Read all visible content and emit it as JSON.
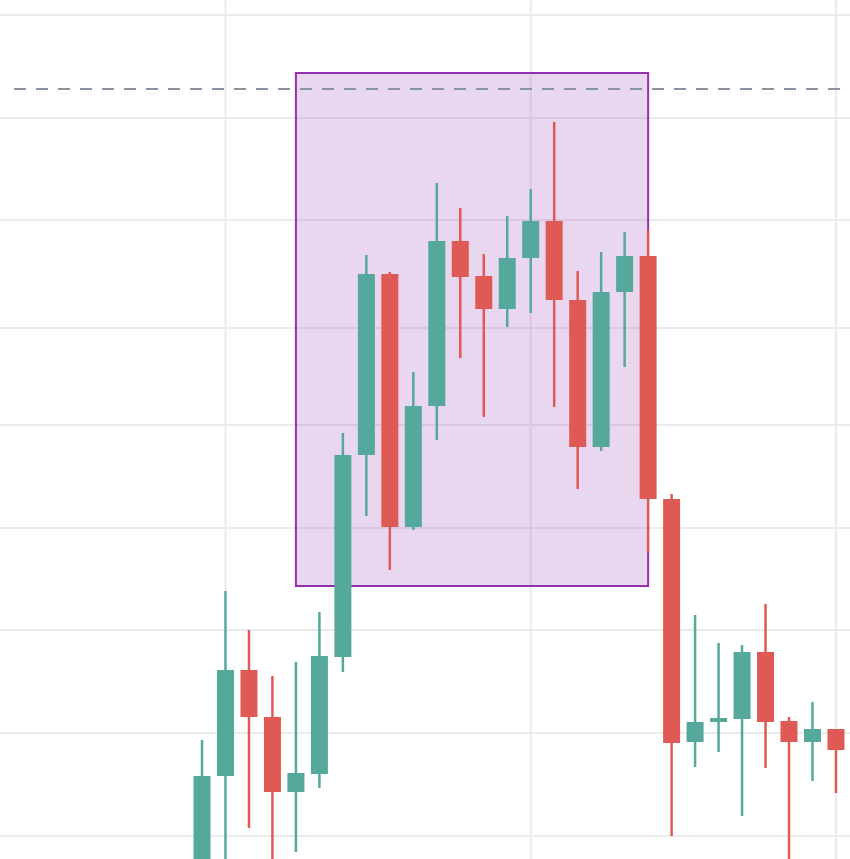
{
  "chart_data": {
    "type": "candlestick",
    "categories": [
      null,
      null,
      null,
      null,
      null,
      null,
      null,
      null,
      null,
      null,
      null,
      null,
      null,
      null,
      null,
      null,
      null,
      null,
      null,
      null,
      null,
      null,
      null,
      null,
      null,
      null,
      null,
      null
    ],
    "open": [
      0,
      8.3,
      18.9,
      14.2,
      6.7,
      8.5,
      20.2,
      40.4,
      58.5,
      33.2,
      45.3,
      61.8,
      58.3,
      55,
      60.1,
      63.8,
      55.9,
      41.2,
      56.7,
      60.3,
      36,
      11.7,
      13.7,
      14,
      20.7,
      13.8,
      11.7,
      13
    ],
    "high": [
      11.9,
      26.8,
      22.9,
      18.3,
      19.7,
      24.7,
      42.6,
      60.4,
      58.7,
      48.7,
      67.6,
      65.1,
      60.5,
      64.3,
      67,
      73.7,
      58.8,
      60.7,
      62.7,
      62.9,
      36.5,
      24.4,
      21.6,
      21.4,
      25.5,
      14.2,
      15.7,
      13
    ],
    "low": [
      0,
      0,
      3.1,
      0,
      0.7,
      7.1,
      18.7,
      34.3,
      28.9,
      32.9,
      41.9,
      50.1,
      44.2,
      53.2,
      54.6,
      45.2,
      37,
      40.8,
      49.2,
      30.7,
      2.3,
      9.2,
      10.7,
      4.3,
      9.1,
      0,
      7.8,
      6.6
    ],
    "close": [
      8.3,
      18.9,
      14.2,
      6.7,
      8.6,
      20.3,
      40.4,
      58.5,
      33.2,
      45.3,
      61.8,
      58.2,
      55,
      60.1,
      63.8,
      55.9,
      41.2,
      56.7,
      60.3,
      36,
      11.6,
      13.7,
      14.1,
      20.7,
      13.7,
      11.7,
      13,
      10.9
    ],
    "up_color": "#55a89c",
    "down_color": "#e05a55",
    "ylim": [
      0,
      85.9
    ],
    "yticks": [
      2.3,
      12.6,
      22.9,
      33.1,
      43.4,
      53.1,
      63.9,
      74.1,
      84.4
    ],
    "xticks": [
      1,
      14,
      27
    ],
    "grid": true,
    "hline": {
      "value": 77,
      "color": "#8a93a3"
    },
    "highlight": {
      "x": [
        4,
        19
      ],
      "y": [
        27.3,
        78.6
      ],
      "color": "#9130b0"
    }
  }
}
